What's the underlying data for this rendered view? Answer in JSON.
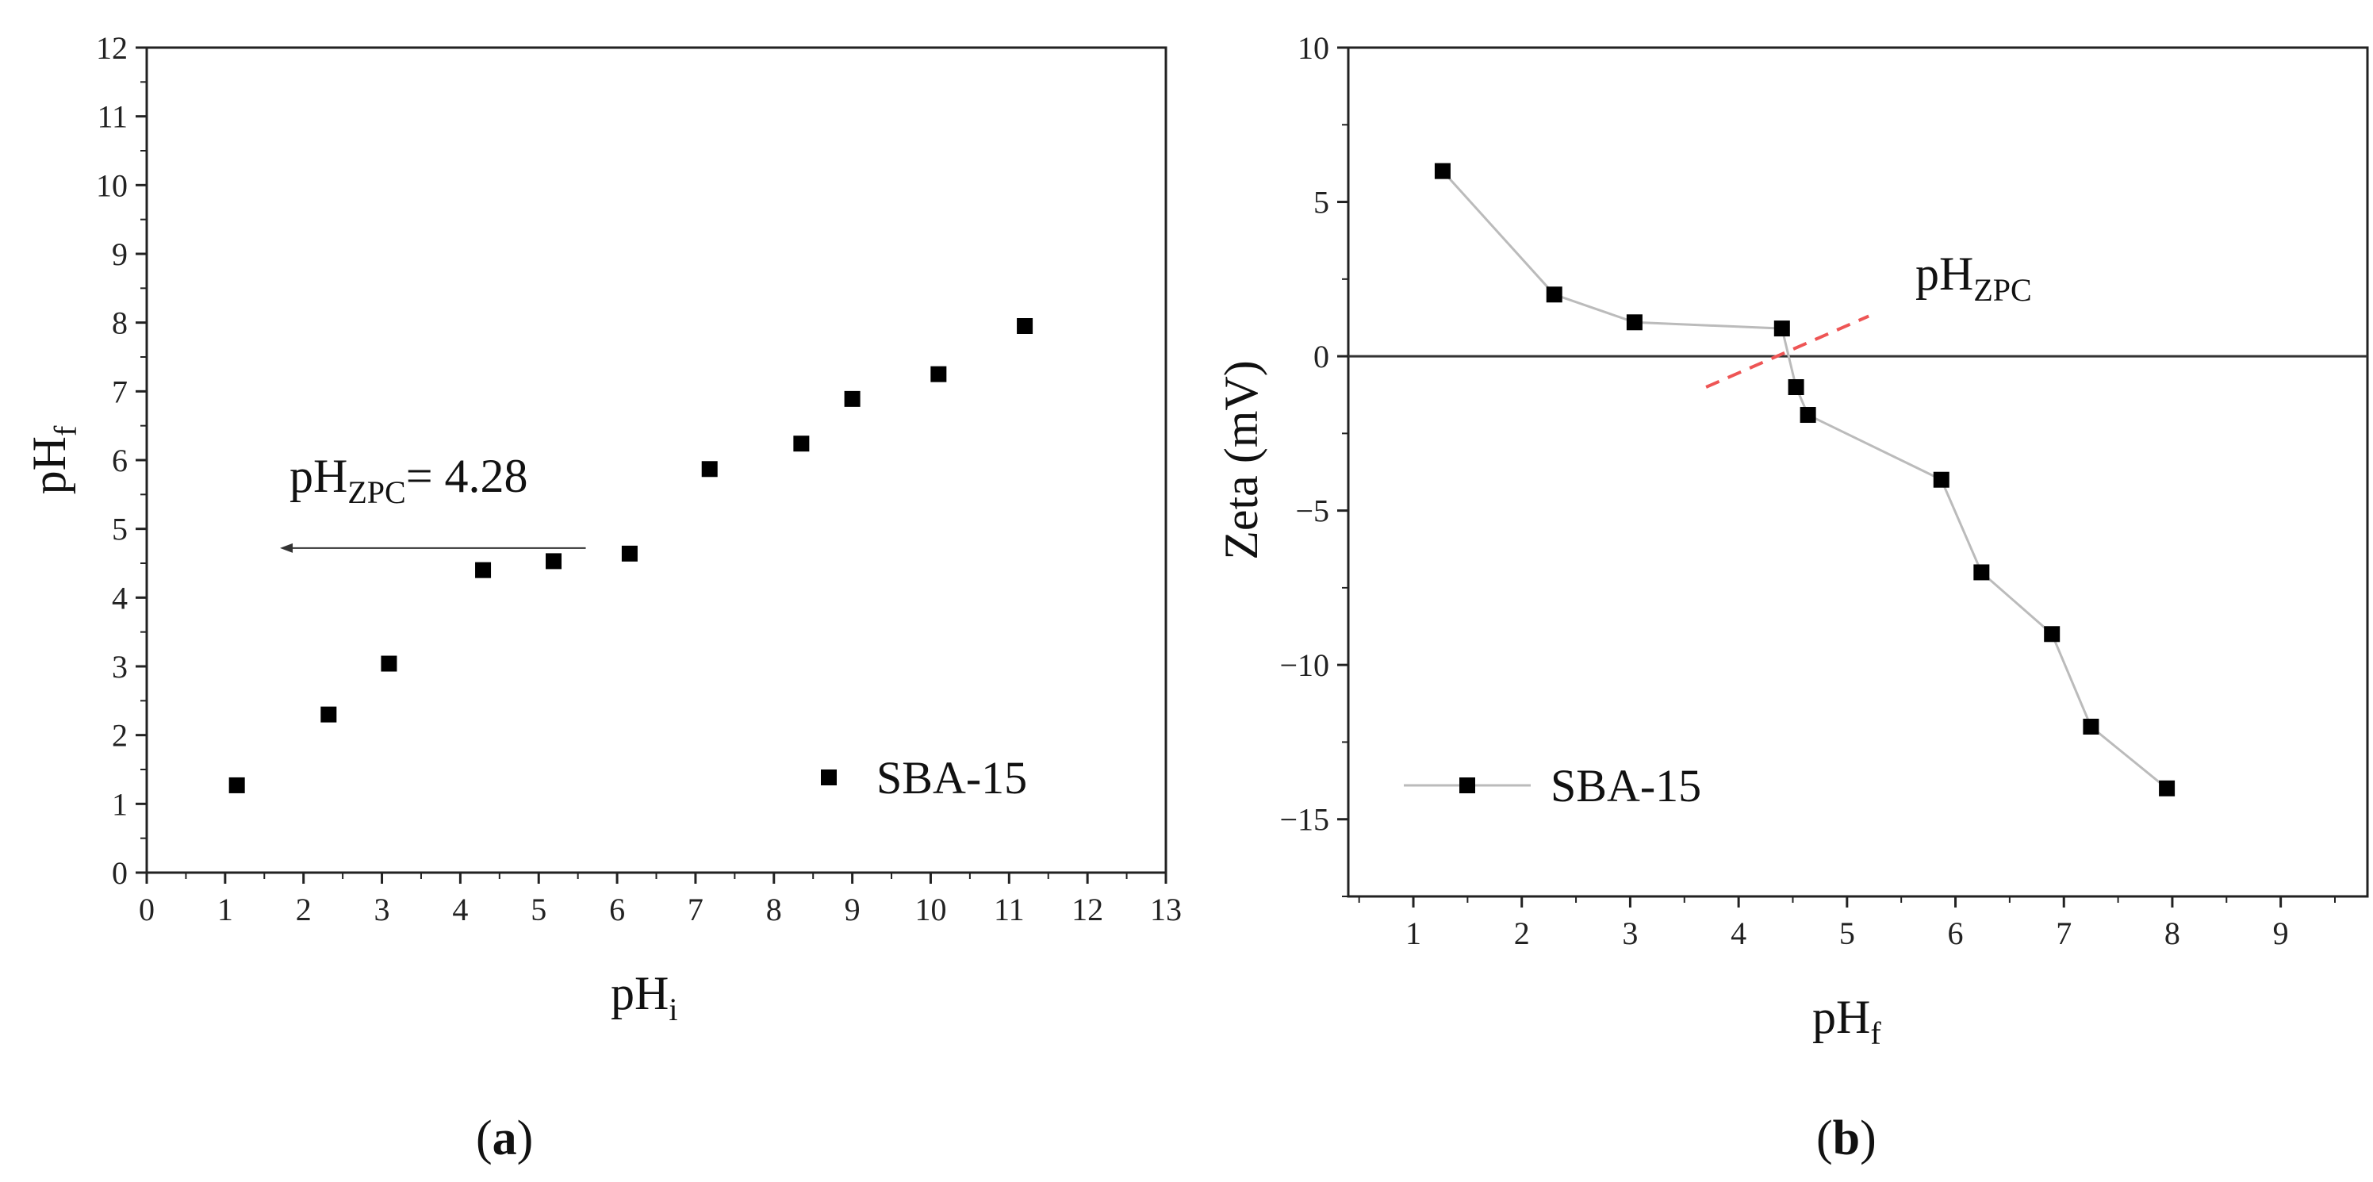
{
  "chart_data": [
    {
      "type": "scatter",
      "panel_label": "a",
      "xlabel_base": "pH",
      "xlabel_sub": "i",
      "ylabel_base": "pH",
      "ylabel_sub": "f",
      "xlim": [
        0,
        13
      ],
      "ylim": [
        0,
        12
      ],
      "xticks": [
        "0",
        "1",
        "2",
        "3",
        "4",
        "5",
        "6",
        "7",
        "8",
        "9",
        "10",
        "11",
        "12",
        "13"
      ],
      "yticks": [
        "0",
        "1",
        "2",
        "3",
        "4",
        "5",
        "6",
        "7",
        "8",
        "9",
        "10",
        "11",
        "12"
      ],
      "series": [
        {
          "name": "SBA-15",
          "x": [
            1.15,
            2.32,
            3.09,
            4.29,
            5.19,
            6.16,
            7.18,
            8.35,
            9.0,
            10.1,
            11.2
          ],
          "y": [
            1.27,
            2.3,
            3.04,
            4.4,
            4.53,
            4.64,
            5.87,
            6.24,
            6.89,
            7.25,
            7.95
          ]
        }
      ],
      "legend_label": "SBA-15",
      "annotation": {
        "base": "pH",
        "sub": "ZPC",
        "text": "= 4.28",
        "arrow_y": 4.72,
        "arrow_from_x": 5.6,
        "arrow_to_x": 1.7
      }
    },
    {
      "type": "line",
      "panel_label": "b",
      "xlabel_base": "pH",
      "xlabel_sub": "f",
      "ylabel": "Zeta (mV)",
      "xlim": [
        0.4,
        9.8
      ],
      "ylim": [
        -17.5,
        10
      ],
      "xticks": [
        "1",
        "2",
        "3",
        "4",
        "5",
        "6",
        "7",
        "8",
        "9"
      ],
      "yticks": [
        "10",
        "5",
        "0",
        "−5",
        "−10",
        "−15"
      ],
      "ytick_values": [
        10,
        5,
        0,
        -5,
        -10,
        -15
      ],
      "zero_line": 0,
      "series": [
        {
          "name": "SBA-15",
          "x": [
            1.27,
            2.3,
            3.04,
            4.4,
            4.53,
            4.64,
            5.87,
            6.24,
            6.89,
            7.25,
            7.95
          ],
          "y": [
            6,
            2,
            1.1,
            0.9,
            -1,
            -1.9,
            -4,
            -7,
            -9,
            -12,
            -14
          ]
        }
      ],
      "legend_label": "SBA-15",
      "annotation": {
        "base": "pH",
        "sub": "ZPC"
      },
      "zpc_dash_line": {
        "x": [
          3.7,
          5.2
        ],
        "y": [
          -1.0,
          1.3
        ],
        "color": "#ee5555"
      }
    }
  ]
}
